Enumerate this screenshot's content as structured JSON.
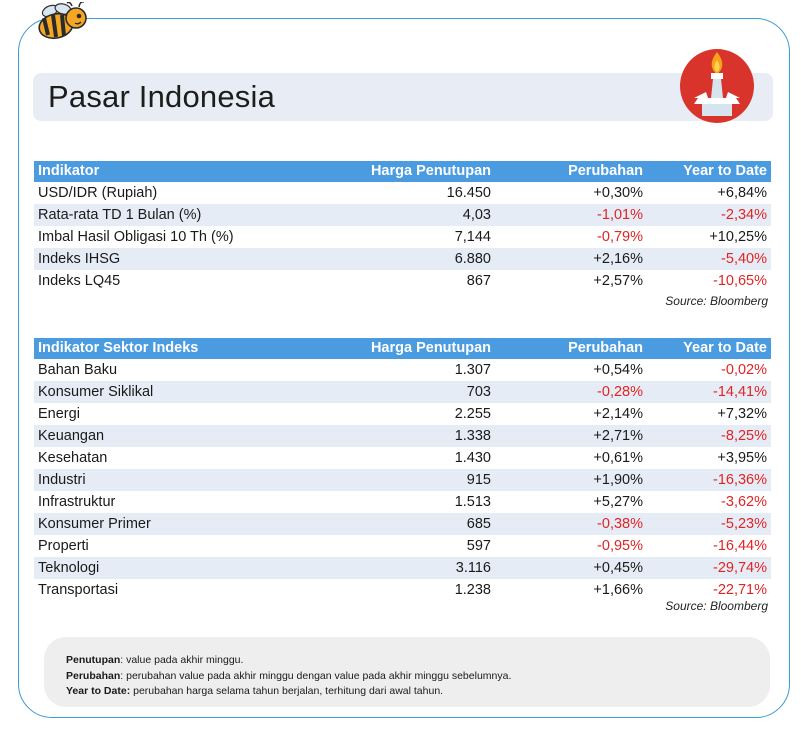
{
  "title": "Pasar Indonesia",
  "colors": {
    "header_blue": "#4a9be0",
    "negative_red": "#e02424",
    "frame_blue": "#3a9bd5",
    "row_alt": "#e6ecf6"
  },
  "icons": {
    "mascot": "bee-icon",
    "emblem": "monas-monument-icon"
  },
  "table1": {
    "headers": [
      "Indikator",
      "Harga Penutupan",
      "Perubahan",
      "Year to Date"
    ],
    "rows": [
      [
        "USD/IDR (Rupiah)",
        "16.450",
        "+0,30%",
        "+6,84%"
      ],
      [
        "Rata-rata TD 1 Bulan (%)",
        "4,03",
        "-1,01%",
        "-2,34%"
      ],
      [
        "Imbal Hasil Obligasi 10 Th (%)",
        "7,144",
        "-0,79%",
        "+10,25%"
      ],
      [
        "Indeks IHSG",
        "6.880",
        "+2,16%",
        "-5,40%"
      ],
      [
        "Indeks LQ45",
        "867",
        "+2,57%",
        "-10,65%"
      ]
    ],
    "source": "Source: Bloomberg"
  },
  "table2": {
    "headers": [
      "Indikator Sektor Indeks",
      "Harga Penutupan",
      "Perubahan",
      "Year to Date"
    ],
    "rows": [
      [
        "Bahan Baku",
        "1.307",
        "+0,54%",
        "-0,02%"
      ],
      [
        "Konsumer Siklikal",
        "703",
        "-0,28%",
        "-14,41%"
      ],
      [
        "Energi",
        "2.255",
        "+2,14%",
        "+7,32%"
      ],
      [
        "Keuangan",
        "1.338",
        "+2,71%",
        "-8,25%"
      ],
      [
        "Kesehatan",
        "1.430",
        "+0,61%",
        "+3,95%"
      ],
      [
        "Industri",
        "915",
        "+1,90%",
        "-16,36%"
      ],
      [
        "Infrastruktur",
        "1.513",
        "+5,27%",
        "-3,62%"
      ],
      [
        "Konsumer Primer",
        "685",
        "-0,38%",
        "-5,23%"
      ],
      [
        "Properti",
        "597",
        "-0,95%",
        "-16,44%"
      ],
      [
        "Teknologi",
        "3.116",
        "+0,45%",
        "-29,74%"
      ],
      [
        "Transportasi",
        "1.238",
        "+1,66%",
        "-22,71%"
      ]
    ],
    "source": "Source: Bloomberg"
  },
  "notes": [
    {
      "term": "Penutupan",
      "text": ": value pada akhir minggu."
    },
    {
      "term": "Perubahan",
      "text": ": perubahan value pada akhir minggu dengan value pada akhir minggu sebelumnya."
    },
    {
      "term": "Year to Date:",
      "text": " perubahan harga selama tahun berjalan, terhitung dari awal tahun."
    }
  ]
}
